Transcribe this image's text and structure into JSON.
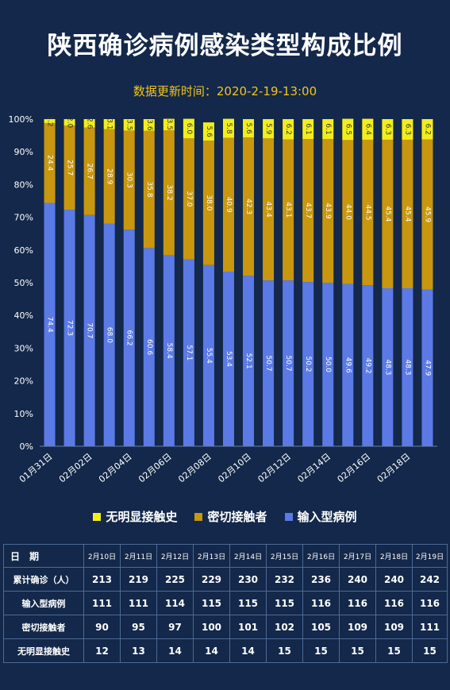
{
  "title": "陕西确诊病例感染类型构成比例",
  "subtitle": "数据更新时间：2020-2-19-13:00",
  "colors": {
    "imported": "#5b7ae6",
    "contact": "#c8970f",
    "unknown": "#f3ee1b",
    "background": "#13284a"
  },
  "chart_data": {
    "type": "bar",
    "stacked": true,
    "percent": true,
    "ylim": [
      0,
      100
    ],
    "y_ticks": [
      "0%",
      "10%",
      "20%",
      "30%",
      "40%",
      "50%",
      "60%",
      "70%",
      "80%",
      "90%",
      "100%"
    ],
    "x_tick_labels": [
      "01月31日",
      "02月02日",
      "02月04日",
      "02月06日",
      "02月08日",
      "02月10日",
      "02月12日",
      "02月14日",
      "02月16日",
      "02月18日"
    ],
    "categories": [
      "01月31日",
      "02月01日",
      "02月02日",
      "02月03日",
      "02月04日",
      "02月05日",
      "02月06日",
      "02月07日",
      "02月08日",
      "02月09日",
      "02月10日",
      "02月11日",
      "02月12日",
      "02月13日",
      "02月14日",
      "02月15日",
      "02月16日",
      "02月17日",
      "02月18日",
      "02月19日"
    ],
    "series": [
      {
        "name": "输入型病例",
        "values": [
          74.4,
          72.3,
          70.7,
          68.0,
          66.2,
          60.6,
          58.4,
          57.1,
          55.4,
          53.4,
          52.1,
          50.7,
          50.7,
          50.2,
          50.0,
          49.6,
          49.2,
          48.3,
          48.3,
          47.9
        ]
      },
      {
        "name": "密切接触者",
        "values": [
          24.4,
          25.7,
          26.7,
          28.9,
          30.3,
          35.8,
          38.2,
          37.0,
          38.0,
          40.9,
          42.3,
          43.4,
          43.1,
          43.7,
          43.9,
          44.0,
          44.5,
          45.4,
          45.4,
          45.9
        ]
      },
      {
        "name": "无明显接触史",
        "values": [
          1.2,
          2.0,
          2.6,
          3.1,
          3.5,
          3.6,
          3.5,
          6.0,
          5.6,
          5.8,
          5.6,
          5.9,
          6.2,
          6.1,
          6.1,
          6.5,
          6.4,
          6.3,
          6.3,
          6.2
        ]
      }
    ],
    "legend": [
      "无明显接触史",
      "密切接触者",
      "输入型病例"
    ],
    "legend_position": "bottom"
  },
  "table": {
    "header": [
      "日　期",
      "2月10日",
      "2月11日",
      "2月12日",
      "2月13日",
      "2月14日",
      "2月15日",
      "2月16日",
      "2月17日",
      "2月18日",
      "2月19日"
    ],
    "rows": [
      {
        "label": "累计确诊（人）",
        "values": [
          "213",
          "219",
          "225",
          "229",
          "230",
          "232",
          "236",
          "240",
          "240",
          "242"
        ]
      },
      {
        "label": "输入型病例",
        "values": [
          "111",
          "111",
          "114",
          "115",
          "115",
          "115",
          "116",
          "116",
          "116",
          "116"
        ]
      },
      {
        "label": "密切接触者",
        "values": [
          "90",
          "95",
          "97",
          "100",
          "101",
          "102",
          "105",
          "109",
          "109",
          "111"
        ]
      },
      {
        "label": "无明显接触史",
        "values": [
          "12",
          "13",
          "14",
          "14",
          "14",
          "15",
          "15",
          "15",
          "15",
          "15"
        ]
      }
    ]
  }
}
